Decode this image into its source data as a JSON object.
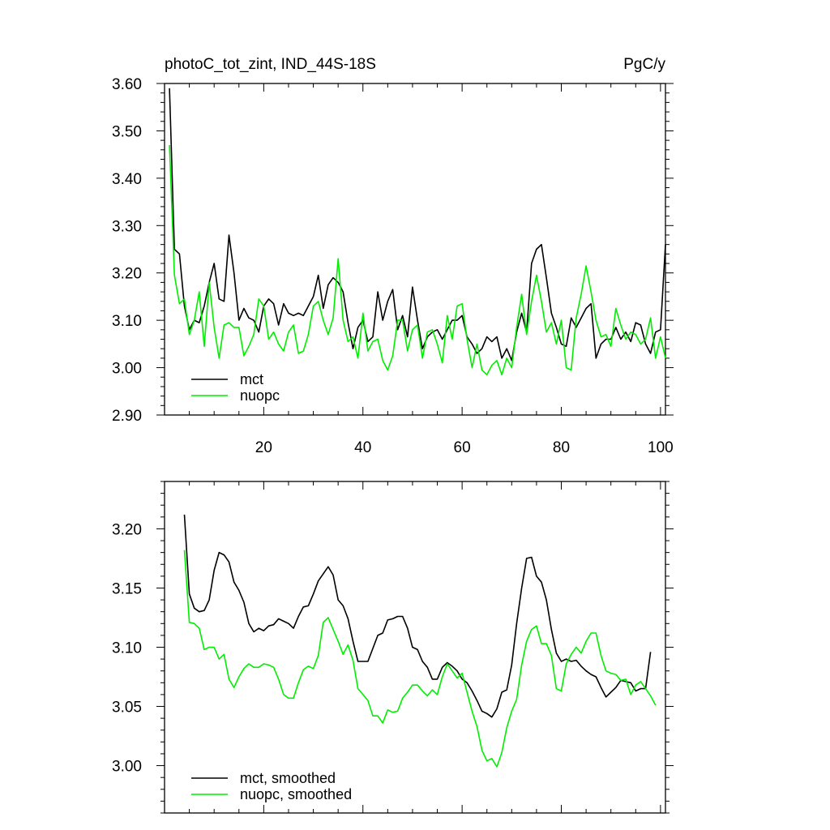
{
  "chart_data": [
    {
      "type": "line",
      "title_left": "photoC_tot_zint, IND_44S-18S",
      "title_right": "PgC/y",
      "xlim": [
        0,
        101
      ],
      "ylim": [
        2.9,
        3.6
      ],
      "x_ticks": [
        20,
        40,
        60,
        80,
        100
      ],
      "y_ticks": [
        2.9,
        3.0,
        3.1,
        3.2,
        3.3,
        3.4,
        3.5,
        3.6
      ],
      "y_tick_labels": [
        "2.90",
        "3.00",
        "3.10",
        "3.20",
        "3.30",
        "3.40",
        "3.50",
        "3.60"
      ],
      "legend_position": "bottom-left",
      "x_start": 1,
      "series": [
        {
          "name": "mct",
          "color": "#000000",
          "values": [
            3.59,
            3.25,
            3.24,
            3.13,
            3.08,
            3.1,
            3.095,
            3.13,
            3.18,
            3.22,
            3.145,
            3.14,
            3.28,
            3.2,
            3.1,
            3.125,
            3.105,
            3.1,
            3.075,
            3.13,
            3.145,
            3.135,
            3.09,
            3.135,
            3.115,
            3.11,
            3.115,
            3.11,
            3.13,
            3.15,
            3.195,
            3.125,
            3.175,
            3.19,
            3.18,
            3.16,
            3.095,
            3.04,
            3.085,
            3.1,
            3.055,
            3.065,
            3.16,
            3.1,
            3.14,
            3.165,
            3.08,
            3.11,
            3.065,
            3.17,
            3.1,
            3.04,
            3.065,
            3.075,
            3.08,
            3.06,
            3.08,
            3.1,
            3.1,
            3.11,
            3.065,
            3.05,
            3.03,
            3.04,
            3.065,
            3.055,
            3.065,
            3.02,
            3.04,
            3.015,
            3.075,
            3.115,
            3.075,
            3.22,
            3.25,
            3.26,
            3.19,
            3.115,
            3.085,
            3.05,
            3.045,
            3.105,
            3.085,
            3.105,
            3.125,
            3.135,
            3.02,
            3.05,
            3.06,
            3.06,
            3.085,
            3.06,
            3.075,
            3.055,
            3.095,
            3.09,
            3.05,
            3.03,
            3.075,
            3.08,
            3.26
          ]
        },
        {
          "name": "nuopc",
          "color": "#00ee00",
          "values": [
            3.47,
            3.195,
            3.135,
            3.145,
            3.07,
            3.1,
            3.16,
            3.045,
            3.18,
            3.085,
            3.02,
            3.09,
            3.095,
            3.085,
            3.085,
            3.025,
            3.045,
            3.07,
            3.145,
            3.13,
            3.06,
            3.075,
            3.05,
            3.035,
            3.075,
            3.09,
            3.03,
            3.035,
            3.07,
            3.13,
            3.14,
            3.1,
            3.07,
            3.105,
            3.23,
            3.1,
            3.055,
            3.065,
            3.02,
            3.115,
            3.035,
            3.055,
            3.06,
            3.015,
            2.995,
            3.025,
            3.1,
            3.1,
            3.035,
            3.08,
            3.09,
            3.02,
            3.075,
            3.08,
            3.05,
            3.01,
            3.11,
            3.06,
            3.13,
            3.135,
            3.06,
            3.0,
            3.05,
            2.995,
            2.985,
            3.005,
            3.015,
            2.985,
            3.02,
            3.0,
            3.085,
            3.155,
            3.07,
            3.14,
            3.195,
            3.14,
            3.075,
            3.095,
            3.05,
            3.1,
            3.0,
            2.995,
            3.105,
            3.155,
            3.215,
            3.16,
            3.1,
            3.065,
            3.07,
            3.045,
            3.125,
            3.09,
            3.06,
            3.075,
            3.07,
            3.05,
            3.06,
            3.105,
            3.02,
            3.065,
            3.02
          ]
        }
      ]
    },
    {
      "type": "line",
      "xlim": [
        0,
        101
      ],
      "ylim": [
        2.96,
        3.24
      ],
      "x_ticks": [
        20,
        40,
        60,
        80,
        100
      ],
      "y_ticks": [
        3.0,
        3.05,
        3.1,
        3.15,
        3.2
      ],
      "y_tick_labels": [
        "3.00",
        "3.05",
        "3.10",
        "3.15",
        "3.20"
      ],
      "legend_position": "bottom-left",
      "x_start": 4,
      "series": [
        {
          "name": "mct, smoothed",
          "color": "#000000",
          "values": [
            3.212,
            3.145,
            3.133,
            3.13,
            3.131,
            3.14,
            3.165,
            3.18,
            3.178,
            3.172,
            3.155,
            3.148,
            3.138,
            3.12,
            3.113,
            3.116,
            3.114,
            3.118,
            3.119,
            3.124,
            3.122,
            3.12,
            3.116,
            3.126,
            3.134,
            3.135,
            3.145,
            3.156,
            3.162,
            3.168,
            3.161,
            3.14,
            3.135,
            3.124,
            3.105,
            3.088,
            3.088,
            3.088,
            3.099,
            3.11,
            3.112,
            3.123,
            3.124,
            3.126,
            3.126,
            3.116,
            3.1,
            3.098,
            3.088,
            3.083,
            3.073,
            3.073,
            3.083,
            3.087,
            3.084,
            3.08,
            3.073,
            3.07,
            3.063,
            3.055,
            3.046,
            3.044,
            3.041,
            3.048,
            3.062,
            3.064,
            3.085,
            3.12,
            3.15,
            3.175,
            3.176,
            3.16,
            3.155,
            3.14,
            3.115,
            3.095,
            3.088,
            3.09,
            3.088,
            3.089,
            3.084,
            3.08,
            3.077,
            3.075,
            3.066,
            3.058,
            3.062,
            3.066,
            3.072,
            3.071,
            3.07,
            3.063,
            3.065,
            3.065,
            3.096
          ]
        },
        {
          "name": "nuopc, smoothed",
          "color": "#00ee00",
          "values": [
            3.182,
            3.121,
            3.12,
            3.116,
            3.098,
            3.1,
            3.1,
            3.09,
            3.094,
            3.073,
            3.066,
            3.075,
            3.082,
            3.086,
            3.083,
            3.083,
            3.086,
            3.085,
            3.083,
            3.073,
            3.06,
            3.057,
            3.057,
            3.07,
            3.081,
            3.084,
            3.082,
            3.093,
            3.121,
            3.125,
            3.115,
            3.105,
            3.094,
            3.102,
            3.089,
            3.065,
            3.06,
            3.055,
            3.042,
            3.042,
            3.036,
            3.047,
            3.045,
            3.046,
            3.057,
            3.062,
            3.068,
            3.068,
            3.063,
            3.059,
            3.064,
            3.06,
            3.075,
            3.086,
            3.08,
            3.074,
            3.078,
            3.062,
            3.046,
            3.033,
            3.013,
            3.004,
            3.006,
            2.999,
            3.011,
            3.032,
            3.046,
            3.056,
            3.085,
            3.105,
            3.115,
            3.118,
            3.103,
            3.103,
            3.093,
            3.065,
            3.063,
            3.086,
            3.094,
            3.1,
            3.095,
            3.105,
            3.112,
            3.112,
            3.093,
            3.08,
            3.078,
            3.077,
            3.072,
            3.073,
            3.06,
            3.068,
            3.071,
            3.065,
            3.059,
            3.051
          ]
        }
      ]
    }
  ]
}
